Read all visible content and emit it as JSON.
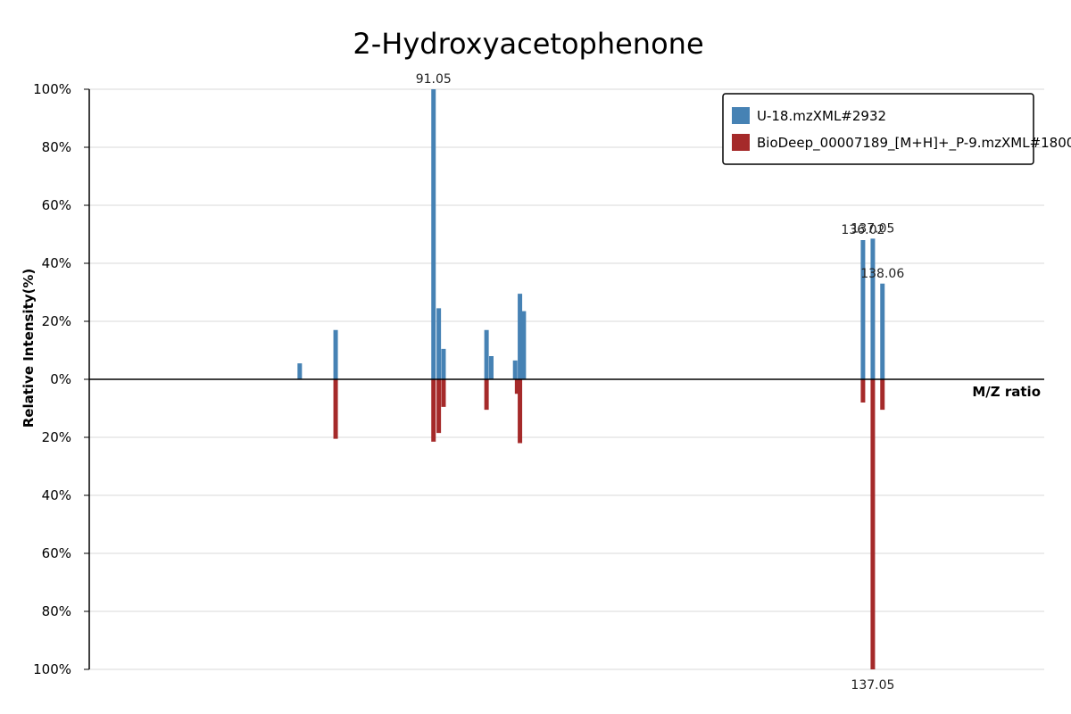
{
  "chart_data": {
    "type": "bar",
    "title": "2-Hydroxyacetophenone",
    "xlabel": "M/Z ratio",
    "ylabel": "Relative Intensity(%)",
    "y_ticks_top": [
      "100%",
      "80%",
      "60%",
      "40%",
      "20%",
      "0%"
    ],
    "y_ticks_bottom": [
      "20%",
      "40%",
      "60%",
      "80%",
      "100%"
    ],
    "xlim": [
      55,
      155
    ],
    "ylim": [
      -100,
      100
    ],
    "grid": true,
    "legend_position": "top-right",
    "series": [
      {
        "name": "U-18.mzXML#2932",
        "color": "#4682b4",
        "direction": "up",
        "peaks": [
          {
            "mz": 77.04,
            "intensity": 5.5
          },
          {
            "mz": 80.8,
            "intensity": 17.0
          },
          {
            "mz": 91.05,
            "intensity": 100.0
          },
          {
            "mz": 91.6,
            "intensity": 24.5
          },
          {
            "mz": 92.1,
            "intensity": 10.5
          },
          {
            "mz": 96.6,
            "intensity": 17.0
          },
          {
            "mz": 97.1,
            "intensity": 8.0
          },
          {
            "mz": 99.6,
            "intensity": 6.5
          },
          {
            "mz": 100.1,
            "intensity": 29.5
          },
          {
            "mz": 100.5,
            "intensity": 23.5
          },
          {
            "mz": 136.02,
            "intensity": 48.0
          },
          {
            "mz": 137.05,
            "intensity": 48.5
          },
          {
            "mz": 138.06,
            "intensity": 33.0
          }
        ]
      },
      {
        "name": "BioDeep_00007189_[M+H]+_P-9.mzXML#1800",
        "color": "#a52a2a",
        "direction": "down",
        "peaks": [
          {
            "mz": 80.8,
            "intensity": 20.5
          },
          {
            "mz": 91.05,
            "intensity": 21.5
          },
          {
            "mz": 91.6,
            "intensity": 18.5
          },
          {
            "mz": 92.1,
            "intensity": 9.5
          },
          {
            "mz": 96.6,
            "intensity": 10.5
          },
          {
            "mz": 100.1,
            "intensity": 22.0
          },
          {
            "mz": 99.8,
            "intensity": 5.0
          },
          {
            "mz": 136.02,
            "intensity": 8.0
          },
          {
            "mz": 137.05,
            "intensity": 100.0
          },
          {
            "mz": 138.06,
            "intensity": 10.5
          }
        ]
      }
    ],
    "annotations": [
      {
        "text": "91.05",
        "series": 0,
        "mz": 91.05
      },
      {
        "text": "136.02",
        "series": 0,
        "mz": 136.02
      },
      {
        "text": "137.05",
        "series": 0,
        "mz": 137.05
      },
      {
        "text": "138.06",
        "series": 0,
        "mz": 138.06
      },
      {
        "text": "137.05",
        "series": 1,
        "mz": 137.05
      }
    ]
  }
}
